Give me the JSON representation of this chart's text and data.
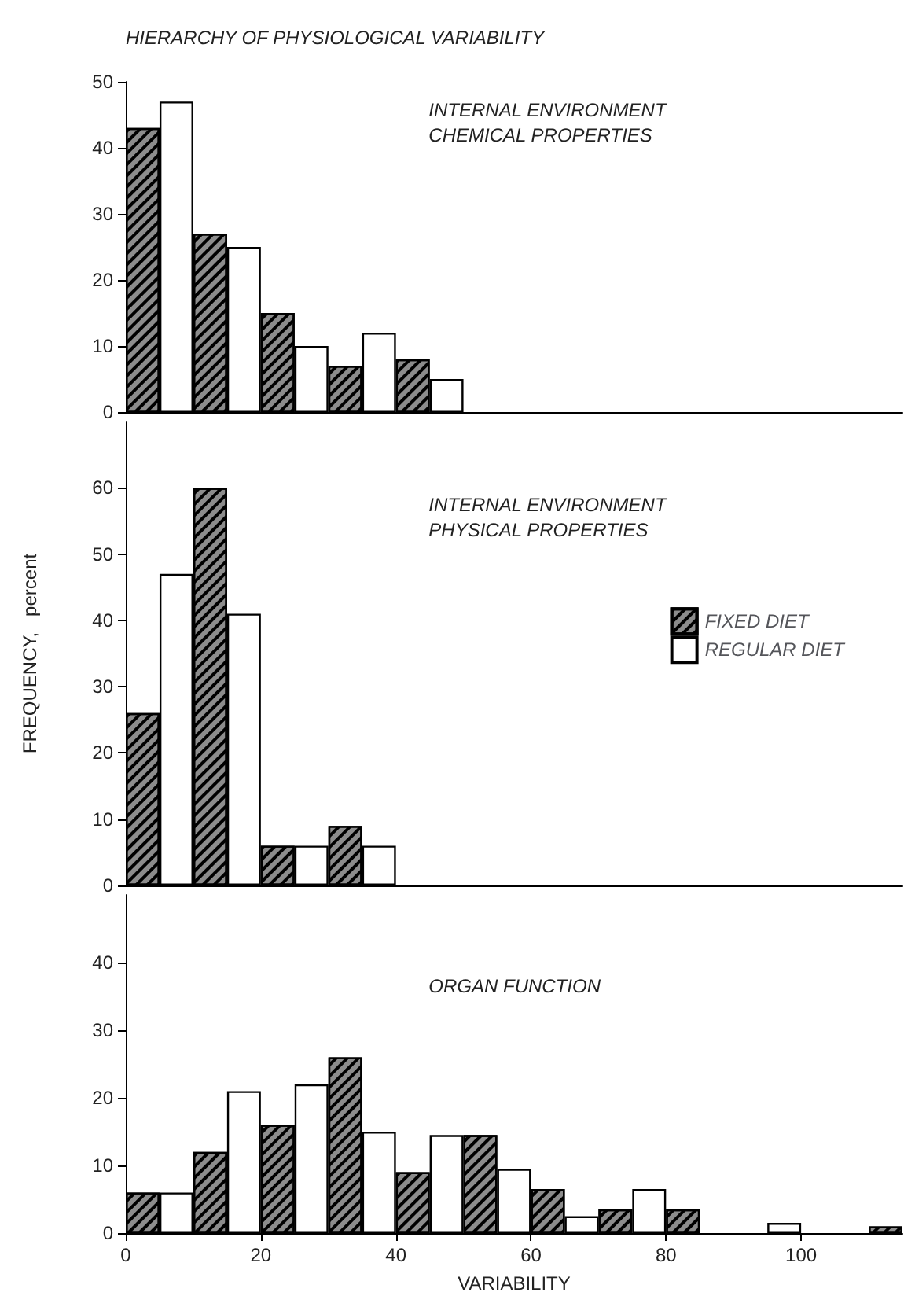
{
  "chart_data": [
    {
      "type": "bar",
      "title": "HIERARCHY OF PHYSIOLOGICAL VARIABILITY",
      "annotations": [
        "INTERNAL ENVIRONMENT\nCHEMICAL PROPERTIES"
      ],
      "xlim": [
        0,
        115
      ],
      "ylim": [
        0,
        50
      ],
      "yticks": [
        0,
        10,
        20,
        30,
        40,
        50
      ],
      "tick_labels": "y",
      "series": [
        {
          "color": "#8c8c8c",
          "x": [
            2.5,
            12.5,
            22.5,
            32.5,
            42.5
          ],
          "values": [
            43,
            27,
            15,
            7,
            8
          ]
        },
        {
          "color": "#ffffff",
          "x": [
            7.5,
            17.5,
            27.5,
            37.5,
            47.5
          ],
          "values": [
            47,
            25,
            10,
            12,
            5
          ]
        }
      ]
    },
    {
      "type": "bar",
      "ylabel": "FREQUENCY,   percent",
      "annotations": [
        "INTERNAL ENVIRONMENT\nPHYSICAL PROPERTIES"
      ],
      "legend": "right",
      "xlim": [
        0,
        115
      ],
      "ylim": [
        0,
        70
      ],
      "yticks": [
        0,
        10,
        20,
        30,
        40,
        50,
        60
      ],
      "tick_labels": "y",
      "series": [
        {
          "name": "FIXED DIET",
          "color": "#8c8c8c",
          "x": [
            2.5,
            12.5,
            22.5,
            32.5
          ],
          "values": [
            26,
            60,
            6,
            9
          ]
        },
        {
          "name": "REGULAR DIET",
          "color": "#ffffff",
          "x": [
            7.5,
            17.5,
            27.5,
            37.5
          ],
          "values": [
            47,
            41,
            6,
            6
          ]
        }
      ]
    },
    {
      "type": "bar",
      "xlabel": "VARIABILITY",
      "annotations": [
        "ORGAN FUNCTION"
      ],
      "xlim": [
        0,
        115
      ],
      "xticks": [
        0,
        20,
        40,
        60,
        80,
        100
      ],
      "ylim": [
        0,
        50
      ],
      "yticks": [
        0,
        10,
        20,
        30,
        40
      ],
      "series": [
        {
          "color": "#8c8c8c",
          "x": [
            2.5,
            12.5,
            22.5,
            32.5,
            42.5,
            52.5,
            62.5,
            72.5,
            82.5,
            112.5
          ],
          "values": [
            6,
            12,
            16,
            26,
            9,
            14.5,
            6.5,
            3.5,
            3.5,
            1
          ]
        },
        {
          "color": "#ffffff",
          "x": [
            7.5,
            17.5,
            27.5,
            37.5,
            47.5,
            57.5,
            67.5,
            77.5,
            97.5
          ],
          "values": [
            6,
            21,
            22,
            15,
            14.5,
            9.5,
            2.5,
            6.5,
            1.5
          ]
        }
      ]
    }
  ]
}
